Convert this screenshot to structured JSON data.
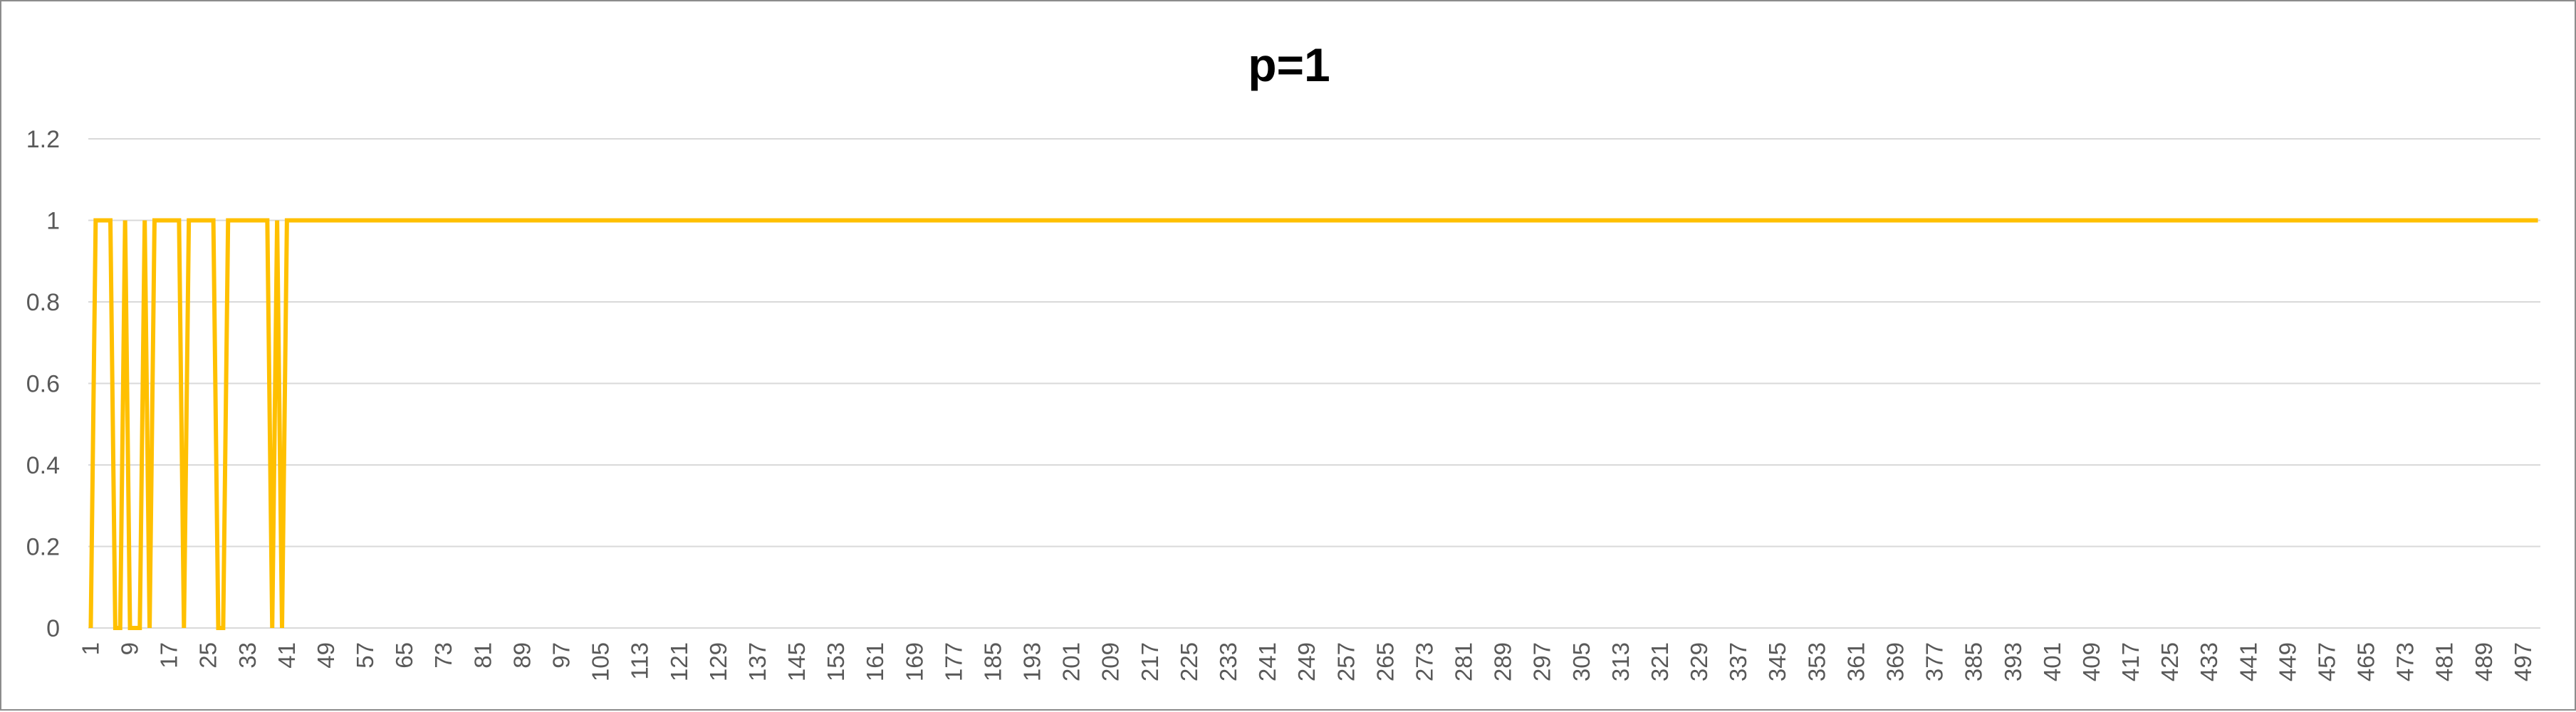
{
  "colors": {
    "series": "#FFC000",
    "gridline": "#D9D9D9",
    "axis_text": "#595959",
    "title": "#000000",
    "frame": "#8C8C8C"
  },
  "chart_data": {
    "type": "line",
    "title": "p=1",
    "xlabel": "",
    "ylabel": "",
    "grid": true,
    "legend": "none",
    "ylim": [
      0,
      1.2
    ],
    "yticks": [
      0,
      0.2,
      0.4,
      0.6,
      0.8,
      1,
      1.2
    ],
    "ytick_labels": [
      "0",
      "0.2",
      "0.4",
      "0.6",
      "0.8",
      "1",
      "1.2"
    ],
    "x_range": [
      1,
      500
    ],
    "xtick_labels": [
      "1",
      "9",
      "17",
      "25",
      "33",
      "41",
      "49",
      "57",
      "65",
      "73",
      "81",
      "89",
      "97",
      "105",
      "113",
      "121",
      "129",
      "137",
      "145",
      "153",
      "161",
      "169",
      "177",
      "185",
      "193",
      "201",
      "209",
      "217",
      "225",
      "233",
      "241",
      "249",
      "257",
      "265",
      "273",
      "281",
      "289",
      "297",
      "305",
      "313",
      "321",
      "329",
      "337",
      "345",
      "353",
      "361",
      "369",
      "377",
      "385",
      "393",
      "401",
      "409",
      "417",
      "425",
      "433",
      "441",
      "449",
      "457",
      "465",
      "473",
      "481",
      "489",
      "497"
    ],
    "series": [
      {
        "values_head": [
          0,
          1,
          1,
          1,
          1,
          0,
          0,
          1,
          0,
          0,
          0,
          1,
          0,
          1,
          1,
          1,
          1,
          1,
          1,
          0,
          1,
          1,
          1,
          1,
          1,
          1,
          0,
          0,
          1,
          1,
          1,
          1,
          1,
          1,
          1,
          1,
          1,
          0,
          1,
          0,
          1
        ],
        "values_rest": {
          "from_x": 42,
          "to_x": 500,
          "value": 1
        }
      }
    ]
  }
}
